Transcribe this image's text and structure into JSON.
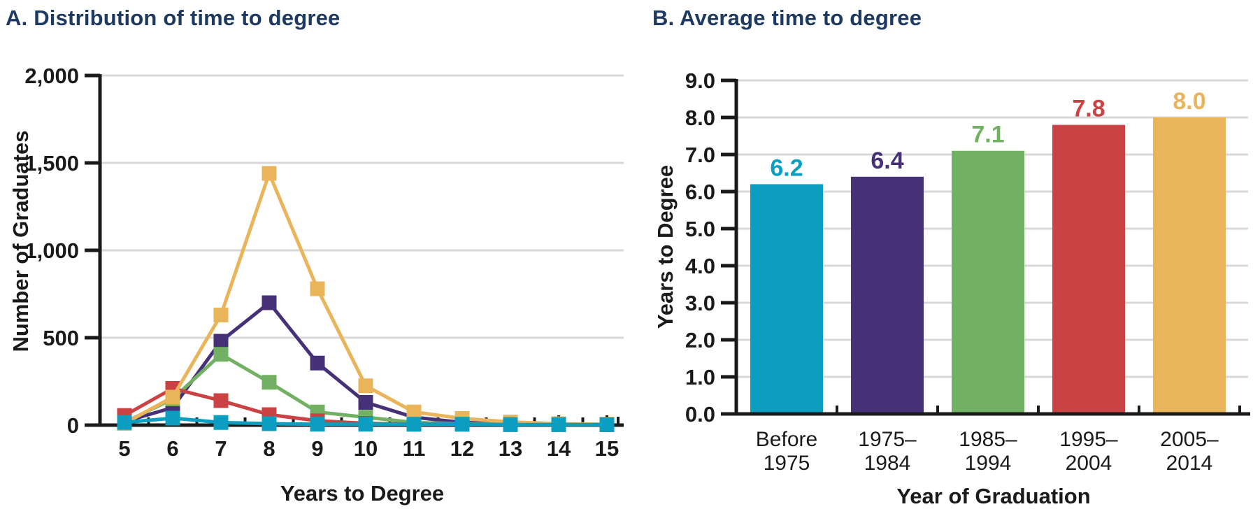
{
  "figure": {
    "panelA": {
      "title": "A. Distribution of time to degree",
      "xlabel": "Years to Degree",
      "ylabel": "Number of Graduates"
    },
    "panelB": {
      "title": "B. Average time to degree",
      "xlabel": "Year of Graduation",
      "ylabel": "Years to Degree"
    }
  },
  "colors": {
    "title_navy": "#1E3A60",
    "axis_black": "#1A1A1A",
    "grid_gray": "#D8D8D8",
    "teal": "#0C9EC1",
    "purple": "#463179",
    "green": "#72B163",
    "red": "#CB4245",
    "yellow": "#E9B45A"
  },
  "chart_data": [
    {
      "type": "line",
      "panel": "A",
      "title": "A. Distribution of time to degree",
      "xlabel": "Years to Degree",
      "ylabel": "Number of Graduates",
      "x": [
        5,
        6,
        7,
        8,
        9,
        10,
        11,
        12,
        13,
        14,
        15
      ],
      "x_tick_labels": [
        "5",
        "6",
        "7",
        "8",
        "9",
        "10",
        "11",
        "12",
        "13",
        "14",
        "15"
      ],
      "ylim": [
        0,
        2000
      ],
      "y_ticks": [
        0,
        500,
        1000,
        1500,
        2000
      ],
      "y_tick_labels": [
        "0",
        "500",
        "1,000",
        "1,500",
        "2,000"
      ],
      "grid": true,
      "marker": "square",
      "legend": "none",
      "series": [
        {
          "name": "Before 1975",
          "color_key": "teal",
          "values": [
            15,
            40,
            15,
            8,
            5,
            5,
            5,
            5,
            3,
            3,
            3
          ]
        },
        {
          "name": "1975–1984",
          "color_key": "purple",
          "values": [
            20,
            100,
            480,
            700,
            355,
            130,
            45,
            15,
            8,
            5,
            3
          ]
        },
        {
          "name": "1985–1994",
          "color_key": "green",
          "values": [
            15,
            150,
            405,
            245,
            75,
            45,
            15,
            8,
            5,
            3,
            3
          ]
        },
        {
          "name": "1995–2004",
          "color_key": "red",
          "values": [
            55,
            210,
            140,
            60,
            25,
            10,
            5,
            5,
            3,
            3,
            3
          ]
        },
        {
          "name": "2005–2014",
          "color_key": "yellow",
          "values": [
            10,
            160,
            630,
            1440,
            780,
            225,
            75,
            38,
            18,
            8,
            5
          ]
        }
      ]
    },
    {
      "type": "bar",
      "panel": "B",
      "title": "B. Average time to degree",
      "xlabel": "Year of Graduation",
      "ylabel": "Years to Degree",
      "categories": [
        [
          "Before",
          "1975"
        ],
        [
          "1975–",
          "1984"
        ],
        [
          "1985–",
          "1994"
        ],
        [
          "1995–",
          "2004"
        ],
        [
          "2005–",
          "2014"
        ]
      ],
      "values": [
        6.2,
        6.4,
        7.1,
        7.8,
        8.0
      ],
      "value_labels": [
        "6.2",
        "6.4",
        "7.1",
        "7.8",
        "8.0"
      ],
      "bar_color_keys": [
        "teal",
        "purple",
        "green",
        "red",
        "yellow"
      ],
      "ylim": [
        0,
        9
      ],
      "y_ticks": [
        0,
        1,
        2,
        3,
        4,
        5,
        6,
        7,
        8,
        9
      ],
      "y_tick_labels": [
        "0.0",
        "1.0",
        "2.0",
        "3.0",
        "4.0",
        "5.0",
        "6.0",
        "7.0",
        "8.0",
        "9.0"
      ],
      "grid": true,
      "legend": "none"
    }
  ]
}
